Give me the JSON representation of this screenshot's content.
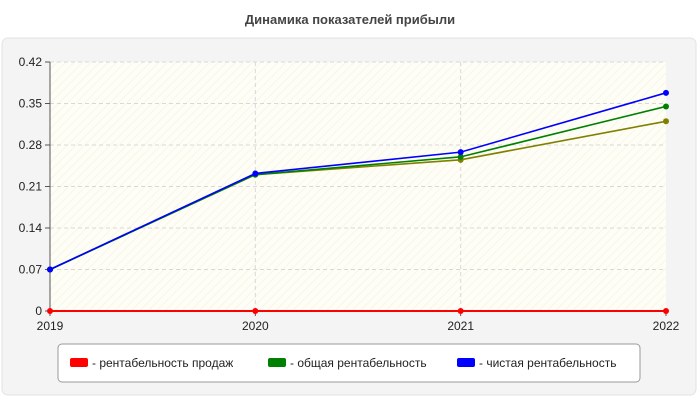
{
  "chart_data": {
    "type": "line",
    "title": "Динамика показателей прибыли",
    "xlabel": "",
    "ylabel": "",
    "x": [
      "2019",
      "2020",
      "2021",
      "2022"
    ],
    "y_ticks": [
      "0",
      "0.07",
      "0.14",
      "0.21",
      "0.28",
      "0.35",
      "0.42"
    ],
    "ylim": [
      0,
      0.42
    ],
    "grid": true,
    "legend_position": "bottom",
    "series": [
      {
        "name": "рентабельность продаж",
        "color": "#ff0000",
        "values": [
          0,
          0,
          0,
          0
        ]
      },
      {
        "name": "общая рентабельность",
        "color": "#008000",
        "values": [
          0.07,
          0.23,
          0.26,
          0.345
        ]
      },
      {
        "name": "чистая рентабельность",
        "color": "#0000ff",
        "values": [
          0.07,
          0.232,
          0.268,
          0.368
        ]
      },
      {
        "name": "",
        "color": "#808000",
        "values": [
          0.07,
          0.23,
          0.255,
          0.32
        ]
      }
    ],
    "legend": [
      {
        "label": "- рентабельность продаж",
        "color": "#ff0000"
      },
      {
        "label": "- общая рентабельность",
        "color": "#008000"
      },
      {
        "label": "- чистая рентабельность",
        "color": "#0000ff"
      }
    ]
  }
}
